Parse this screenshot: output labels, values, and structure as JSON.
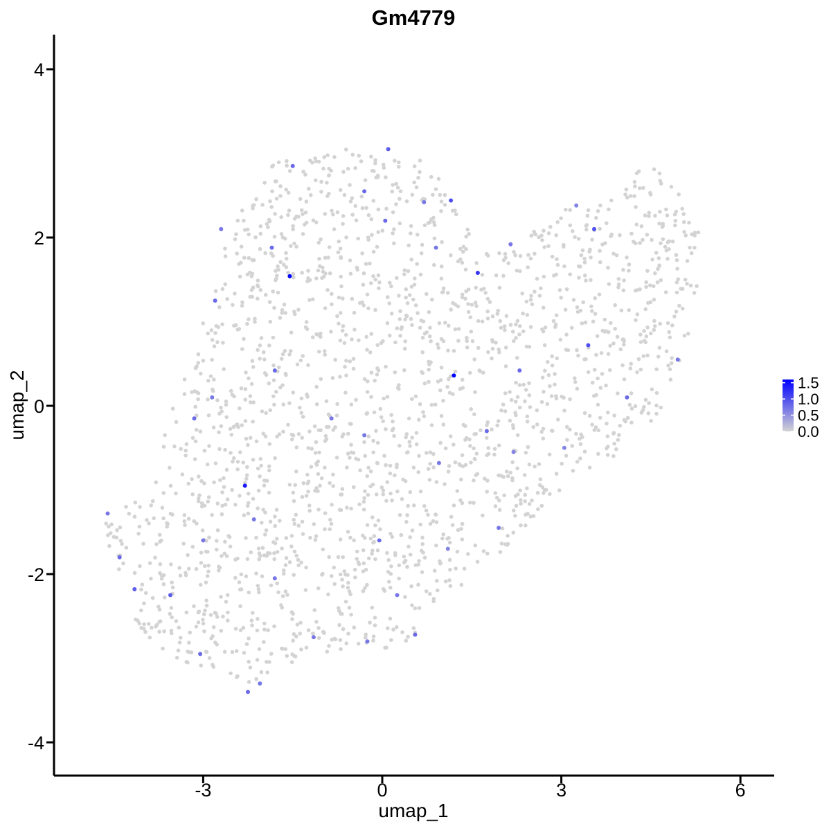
{
  "chart_data": {
    "type": "scatter",
    "title": "Gm4779",
    "xlabel": "umap_1",
    "ylabel": "umap_2",
    "xlim": [
      -5.3,
      6.5
    ],
    "ylim": [
      -4.35,
      4.4
    ],
    "xticks": [
      -3,
      0,
      3,
      6
    ],
    "yticks": [
      -4,
      -2,
      0,
      2,
      4
    ],
    "grid": false,
    "legend": {
      "placement": "right",
      "type": "colorbar",
      "range": [
        0,
        1.6
      ],
      "ticks": [
        0.0,
        0.5,
        1.0,
        1.5
      ],
      "tick_labels": [
        "0.0",
        "0.5",
        "1.0",
        "1.5"
      ],
      "low_color": "#d3d3d3",
      "high_color": "#0000ff"
    },
    "point_color_low": "#d3d3d3",
    "point_color_high": "#0000ff",
    "point_count_estimate": 2000,
    "expressing_points": [
      {
        "x": -1.55,
        "y": 1.54,
        "value": 1.6
      },
      {
        "x": 1.2,
        "y": 0.36,
        "value": 1.6
      },
      {
        "x": -2.3,
        "y": -0.95,
        "value": 1.4
      },
      {
        "x": 1.6,
        "y": 1.58,
        "value": 1.2
      },
      {
        "x": 1.15,
        "y": 2.44,
        "value": 1.0
      },
      {
        "x": 3.55,
        "y": 2.1,
        "value": 1.0
      },
      {
        "x": 3.45,
        "y": 0.72,
        "value": 1.0
      },
      {
        "x": -4.6,
        "y": -1.28,
        "value": 0.7
      },
      {
        "x": -4.4,
        "y": -1.8,
        "value": 0.8
      },
      {
        "x": -4.15,
        "y": -2.18,
        "value": 0.9
      },
      {
        "x": -3.55,
        "y": -2.25,
        "value": 0.9
      },
      {
        "x": -3.05,
        "y": -2.95,
        "value": 0.8
      },
      {
        "x": -2.25,
        "y": -3.4,
        "value": 0.8
      },
      {
        "x": -2.05,
        "y": -3.3,
        "value": 0.7
      },
      {
        "x": -2.8,
        "y": 1.25,
        "value": 0.8
      },
      {
        "x": -2.7,
        "y": 2.1,
        "value": 0.7
      },
      {
        "x": -1.85,
        "y": 1.88,
        "value": 0.8
      },
      {
        "x": -1.5,
        "y": 2.85,
        "value": 0.8
      },
      {
        "x": -0.3,
        "y": 2.55,
        "value": 0.8
      },
      {
        "x": 0.1,
        "y": 3.05,
        "value": 0.9
      },
      {
        "x": 0.05,
        "y": 2.2,
        "value": 0.8
      },
      {
        "x": 0.7,
        "y": 2.42,
        "value": 0.7
      },
      {
        "x": 0.9,
        "y": 1.88,
        "value": 0.7
      },
      {
        "x": 2.15,
        "y": 1.92,
        "value": 0.7
      },
      {
        "x": 2.3,
        "y": 0.42,
        "value": 0.8
      },
      {
        "x": 3.25,
        "y": 2.38,
        "value": 0.6
      },
      {
        "x": 4.1,
        "y": 0.1,
        "value": 0.8
      },
      {
        "x": 4.95,
        "y": 0.55,
        "value": 0.7
      },
      {
        "x": -1.8,
        "y": 0.42,
        "value": 0.8
      },
      {
        "x": -3.15,
        "y": -0.15,
        "value": 0.8
      },
      {
        "x": -2.85,
        "y": 0.1,
        "value": 0.7
      },
      {
        "x": -0.85,
        "y": -0.15,
        "value": 0.7
      },
      {
        "x": -0.3,
        "y": -0.35,
        "value": 0.7
      },
      {
        "x": 1.75,
        "y": -0.3,
        "value": 0.8
      },
      {
        "x": 0.95,
        "y": -0.68,
        "value": 0.7
      },
      {
        "x": -0.05,
        "y": -1.6,
        "value": 0.8
      },
      {
        "x": 0.25,
        "y": -2.25,
        "value": 0.7
      },
      {
        "x": 0.55,
        "y": -2.72,
        "value": 0.8
      },
      {
        "x": -1.15,
        "y": -2.75,
        "value": 0.7
      },
      {
        "x": -2.15,
        "y": -1.35,
        "value": 0.7
      },
      {
        "x": -3.0,
        "y": -1.6,
        "value": 0.7
      },
      {
        "x": -1.8,
        "y": -2.05,
        "value": 0.7
      },
      {
        "x": -0.25,
        "y": -2.8,
        "value": 0.7
      },
      {
        "x": 1.1,
        "y": -1.7,
        "value": 0.6
      },
      {
        "x": 1.95,
        "y": -1.45,
        "value": 0.7
      },
      {
        "x": 2.2,
        "y": -0.55,
        "value": 0.6
      },
      {
        "x": 3.05,
        "y": -0.5,
        "value": 0.6
      }
    ]
  }
}
